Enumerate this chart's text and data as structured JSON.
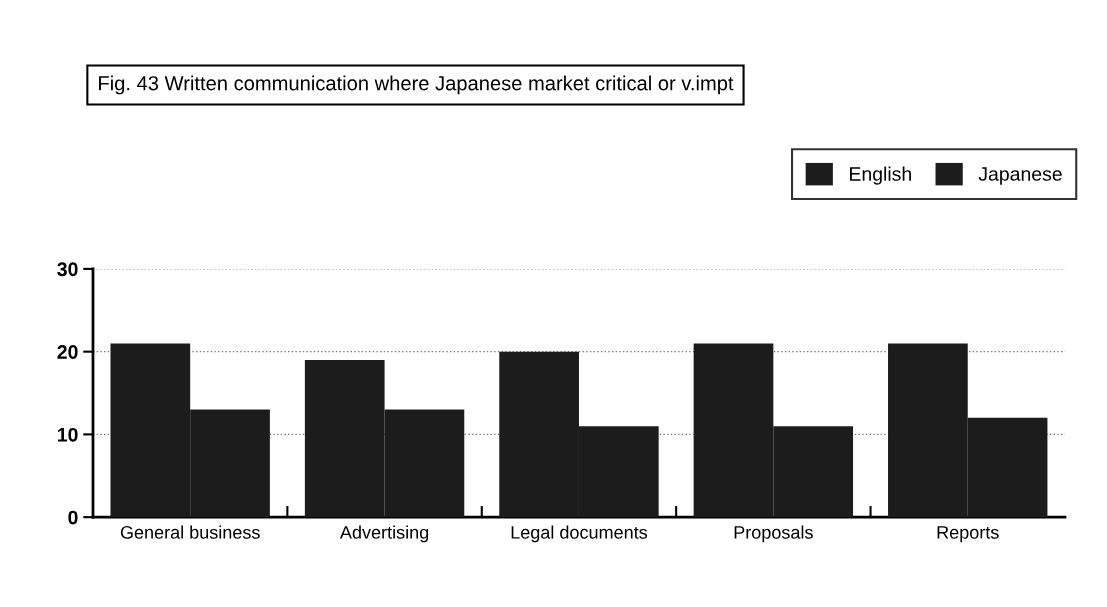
{
  "chart_data": {
    "type": "bar",
    "title": "Fig. 43 Written communication where Japanese market critical or v.impt",
    "categories": [
      "General business",
      "Advertising",
      "Legal documents",
      "Proposals",
      "Reports"
    ],
    "series": [
      {
        "name": "English",
        "color": "#1c1c1c",
        "values": [
          21,
          19,
          20,
          21,
          21
        ]
      },
      {
        "name": "Japanese",
        "color": "#1c1c1c",
        "values": [
          13,
          13,
          11,
          11,
          12
        ]
      }
    ],
    "ylim": [
      0,
      30
    ],
    "yticks": [
      0,
      10,
      20,
      30
    ],
    "grid": "y",
    "legend": "top right"
  }
}
